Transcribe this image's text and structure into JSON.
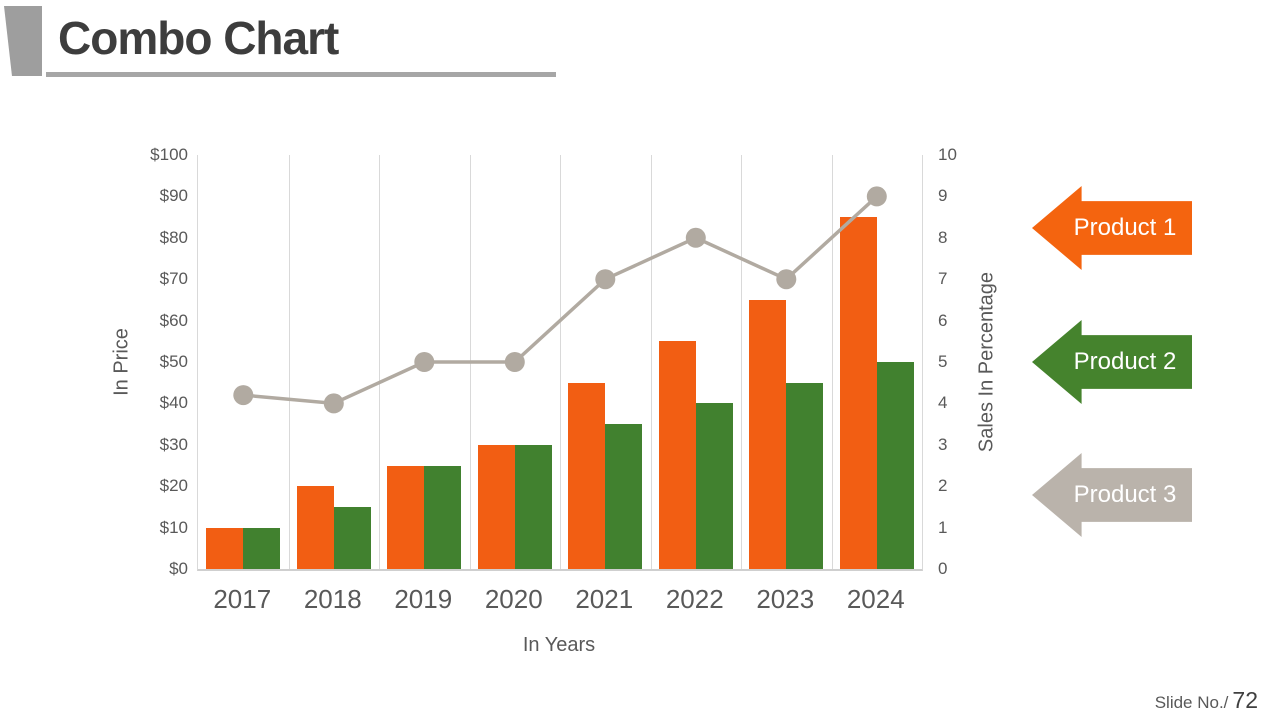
{
  "slide": {
    "title": "Combo Chart",
    "footer_label": "Slide No./",
    "footer_number": "72"
  },
  "chart_data": {
    "type": "combo-bar-line",
    "categories": [
      "2017",
      "2018",
      "2019",
      "2020",
      "2021",
      "2022",
      "2023",
      "2024"
    ],
    "series": [
      {
        "name": "Product 1",
        "type": "bar",
        "axis": "left",
        "color": "#F25E13",
        "values": [
          10,
          20,
          25,
          30,
          45,
          55,
          65,
          85
        ]
      },
      {
        "name": "Product 2",
        "type": "bar",
        "axis": "left",
        "color": "#41812F",
        "values": [
          10,
          15,
          25,
          30,
          35,
          40,
          45,
          50
        ]
      },
      {
        "name": "Product 3",
        "type": "line",
        "axis": "right",
        "color": "#B1AAA1",
        "values": [
          4.2,
          4,
          5,
          5,
          7,
          8,
          7,
          9
        ]
      }
    ],
    "left_axis": {
      "title": "In Price",
      "min": 0,
      "max": 100,
      "ticks": [
        "$100",
        "$90",
        "$80",
        "$70",
        "$60",
        "$50",
        "$40",
        "$30",
        "$20",
        "$10",
        "$0"
      ]
    },
    "right_axis": {
      "title": "Sales In Percentage",
      "min": 0,
      "max": 10,
      "ticks": [
        "10",
        "9",
        "8",
        "7",
        "6",
        "5",
        "4",
        "3",
        "2",
        "1",
        "0"
      ]
    },
    "x_axis": {
      "title": "In Years"
    },
    "grid": {
      "vertical_category_lines": true,
      "horizontal_lines": false
    },
    "legend": {
      "position": "right",
      "items": [
        {
          "label": "Product 1",
          "color": "#F4640F"
        },
        {
          "label": "Product 2",
          "color": "#45832D"
        },
        {
          "label": "Product 3",
          "color": "#BAB3AB"
        }
      ]
    },
    "colors": {
      "accent_gray": "#A6A6A6",
      "axis_text": "#595959",
      "gridline": "#D9D9D9"
    }
  }
}
